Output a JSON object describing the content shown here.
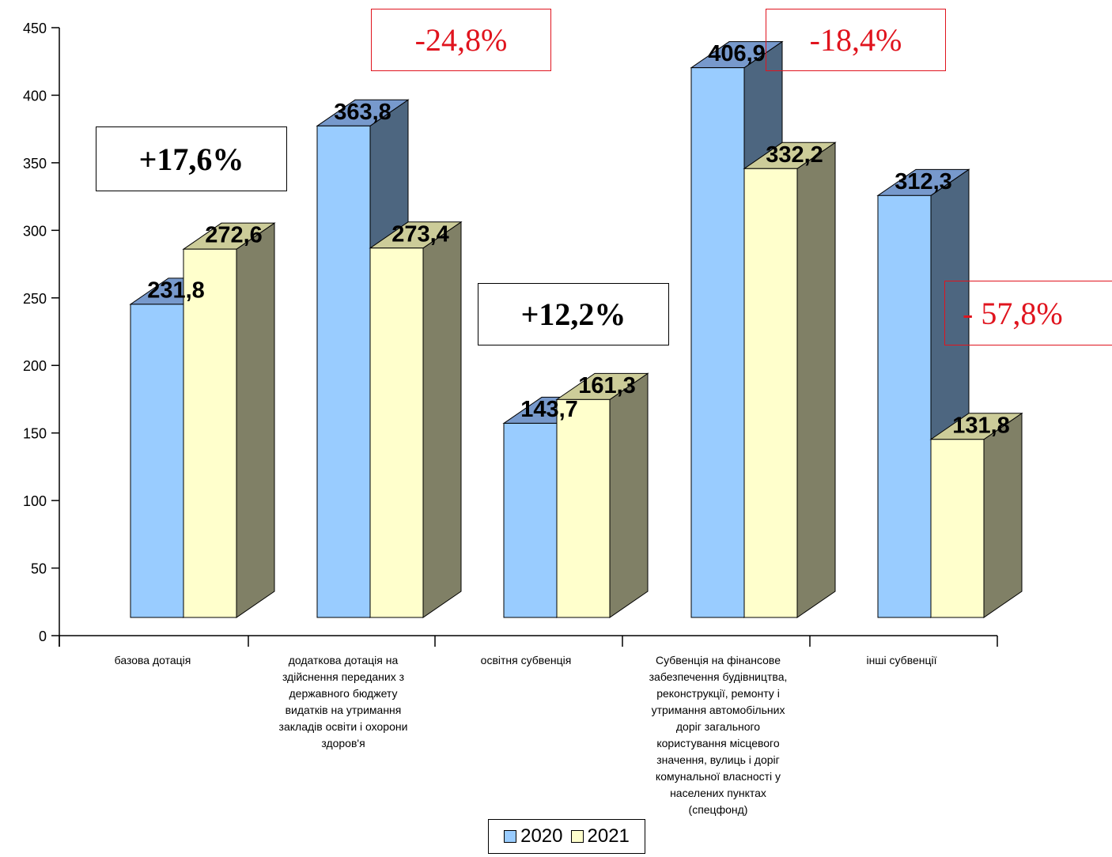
{
  "chart_data": {
    "type": "bar",
    "categories": [
      "базова дотація",
      "додаткова дотація на здійснення переданих з державного бюджету видатків на утримання закладів освіти і охорони здоров'я",
      "освітня субвенція",
      "Субвенція  на фінансове забезпечення будівництва, реконструкції, ремонту і утримання автомобільних доріг загального користування місцевого значення, вулиць і доріг комунальної власності у населених пунктах (спецфонд)",
      "інші субвенції"
    ],
    "category_lines": [
      [
        "базова дотація"
      ],
      [
        "додаткова дотація на",
        "здійснення переданих з",
        "державного бюджету",
        "видатків на утримання",
        "закладів освіти і охорони",
        "здоров'я"
      ],
      [
        "освітня субвенція"
      ],
      [
        "Субвенція  на фінансове",
        "забезпечення будівництва,",
        "реконструкції, ремонту і",
        "утримання автомобільних",
        "доріг загального",
        "користування місцевого",
        "значення, вулиць і доріг",
        "комунальної власності у",
        "населених пунктах",
        "(спецфонд)"
      ],
      [
        "інші субвенції"
      ]
    ],
    "series": [
      {
        "name": "2020",
        "values": [
          231.8,
          363.8,
          143.7,
          406.9,
          312.3
        ],
        "labels": [
          "231,8",
          "363,8",
          "143,7",
          "406,9",
          "312,3"
        ]
      },
      {
        "name": "2021",
        "values": [
          272.6,
          273.4,
          161.3,
          332.2,
          131.8
        ],
        "labels": [
          "272,6",
          "273,4",
          "161,3",
          "332,2",
          "131,8"
        ]
      }
    ],
    "ylim": [
      0,
      450
    ],
    "y_ticks": [
      0,
      50,
      100,
      150,
      200,
      250,
      300,
      350,
      400,
      450
    ],
    "legend_position": "bottom",
    "grid": false,
    "colors": {
      "2020_front": "#99ccff",
      "2020_side": "#4d6680",
      "2020_top": "#7799cc",
      "2021_front": "#ffffcc",
      "2021_side": "#808066",
      "2021_top": "#cccc99"
    }
  },
  "annotations": [
    {
      "text": "+17,6%",
      "style": "black"
    },
    {
      "text": "-24,8%",
      "style": "red"
    },
    {
      "text": "+12,2%",
      "style": "black"
    },
    {
      "text": "-18,4%",
      "style": "red"
    },
    {
      "text": "- 57,8%",
      "style": "red"
    }
  ]
}
